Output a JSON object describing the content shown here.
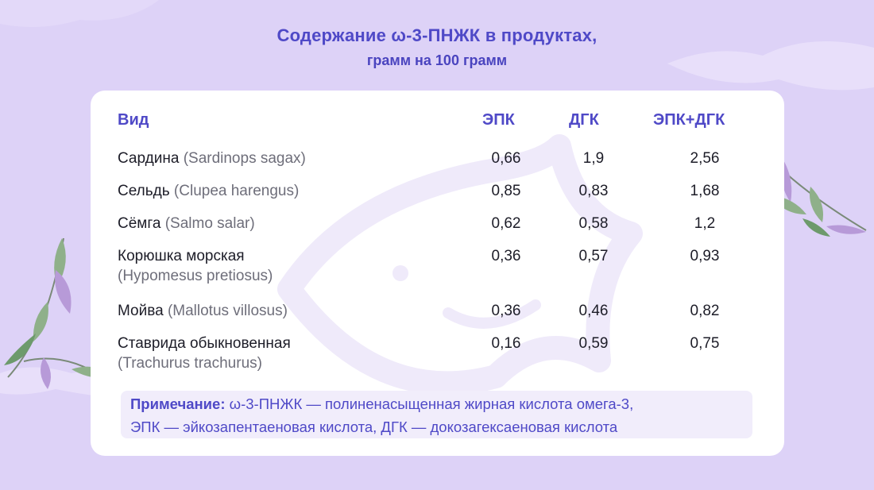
{
  "title": {
    "main": "Содержание ω-3-ПНЖК в продуктах,",
    "sub": "грамм на 100 грамм"
  },
  "table": {
    "headers": [
      "Вид",
      "ЭПК",
      "ДГК",
      "ЭПК+ДГК"
    ],
    "rows": [
      {
        "name": "Сардина",
        "latin": "(Sardinops sagax)",
        "epa": "0,66",
        "dha": "1,9",
        "sum": "2,56"
      },
      {
        "name": "Сельдь",
        "latin": "(Clupea harengus)",
        "epa": "0,85",
        "dha": "0,83",
        "sum": "1,68"
      },
      {
        "name": "Сёмга",
        "latin": "(Salmo salar)",
        "epa": "0,62",
        "dha": "0,58",
        "sum": "1,2"
      },
      {
        "name": "Корюшка морская",
        "latin": "(Hypomesus pretiosus)",
        "epa": "0,36",
        "dha": "0,57",
        "sum": "0,93"
      },
      {
        "name": "Мойва",
        "latin": "(Mallotus villosus)",
        "epa": "0,36",
        "dha": "0,46",
        "sum": "0,82"
      },
      {
        "name": "Ставрида обыкновенная",
        "latin": "(Trachurus trachurus)",
        "epa": "0,16",
        "dha": "0,59",
        "sum": "0,75"
      }
    ]
  },
  "note": {
    "label": "Примечание:",
    "line1": "ω-3-ПНЖК — полиненасыщенная жирная кислота омега-3,",
    "line2": "ЭПК — эйкозапентаеновая кислота, ДГК — докозагексаеновая кислота"
  },
  "colors": {
    "background": "#ddd2f7",
    "accent": "#4f49c7",
    "card": "#ffffff",
    "note_bg": "#f1edfb"
  },
  "icons": [
    "fish-watermark-icon",
    "leaf-branch-left-icon",
    "leaf-branch-right-icon",
    "cloud-decoration-icon"
  ]
}
